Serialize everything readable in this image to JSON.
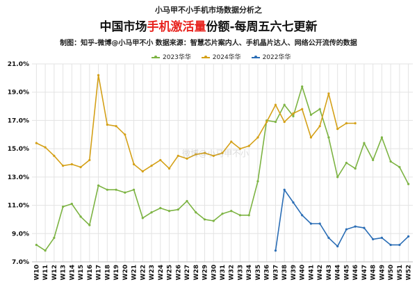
{
  "header": {
    "top_title": "小马甲不小手机市场数据分析之",
    "title_prefix": "中国市场",
    "title_highlight": "手机激活量",
    "title_suffix": "份额-每周五六七更新",
    "source": "制图：知乎-微博@小马甲不小  数据来源：智慧芯片案内人、手机晶片达人、网络公开流传的数据",
    "watermark": "微博@小马甲不小"
  },
  "colors": {
    "s2023": "#7cb342",
    "s2024": "#d4a017",
    "s2022": "#2a6db5",
    "grid": "#e3e3e3"
  },
  "chart_data": {
    "type": "line",
    "title": "中国市场手机激活量份额-每周五六七更新",
    "xlabel": "",
    "ylabel": "",
    "ylim": [
      7.0,
      21.0
    ],
    "yticks": [
      "7.0%",
      "9.0%",
      "11.0%",
      "13.0%",
      "15.0%",
      "17.0%",
      "19.0%",
      "21.0%"
    ],
    "grid": true,
    "legend_position": "top-center",
    "categories": [
      "W10",
      "W11",
      "W12",
      "W13",
      "W14",
      "W15",
      "W16",
      "W17",
      "W18",
      "W19",
      "W20",
      "W21",
      "W22",
      "W23",
      "W24",
      "W25",
      "W26",
      "W27",
      "W28",
      "W29",
      "W30",
      "W31",
      "W32",
      "W33",
      "W34",
      "W35",
      "W36",
      "W37",
      "W38",
      "W39",
      "W40",
      "W41",
      "W42",
      "W43",
      "W44",
      "W45",
      "W46",
      "W47",
      "W48",
      "W49",
      "W50",
      "W51",
      "W52"
    ],
    "series": [
      {
        "name": "2023华华",
        "color_key": "s2023",
        "values": [
          8.2,
          7.8,
          8.7,
          10.9,
          11.1,
          10.2,
          9.6,
          12.4,
          12.1,
          12.1,
          11.9,
          12.1,
          10.1,
          10.5,
          10.8,
          10.6,
          10.7,
          11.3,
          10.5,
          10.0,
          9.9,
          10.4,
          10.6,
          10.3,
          10.3,
          12.7,
          17.0,
          16.9,
          18.1,
          17.3,
          19.4,
          17.4,
          17.8,
          15.8,
          13.0,
          14.0,
          13.6,
          15.4,
          14.2,
          15.8,
          14.1,
          13.7,
          12.5
        ]
      },
      {
        "name": "2024华华",
        "color_key": "s2024",
        "values": [
          15.4,
          15.1,
          14.5,
          13.8,
          13.9,
          13.7,
          14.2,
          20.2,
          16.7,
          16.6,
          16.0,
          13.9,
          13.4,
          13.8,
          14.2,
          13.6,
          14.5,
          14.3,
          14.6,
          14.7,
          14.5,
          14.7,
          15.5,
          15.0,
          15.2,
          15.8,
          16.9,
          18.1,
          16.9,
          17.5,
          17.8,
          15.8,
          16.6,
          18.9,
          16.4,
          16.8,
          16.8,
          null,
          null,
          null,
          null,
          null,
          null
        ]
      },
      {
        "name": "2022华华",
        "color_key": "s2022",
        "values": [
          null,
          null,
          null,
          null,
          null,
          null,
          null,
          null,
          null,
          null,
          null,
          null,
          null,
          null,
          null,
          null,
          null,
          null,
          null,
          null,
          null,
          null,
          null,
          null,
          null,
          null,
          null,
          7.8,
          12.1,
          11.2,
          10.3,
          9.7,
          9.7,
          8.7,
          8.1,
          9.3,
          9.5,
          9.4,
          8.6,
          8.7,
          8.2,
          8.2,
          8.8
        ]
      }
    ]
  }
}
